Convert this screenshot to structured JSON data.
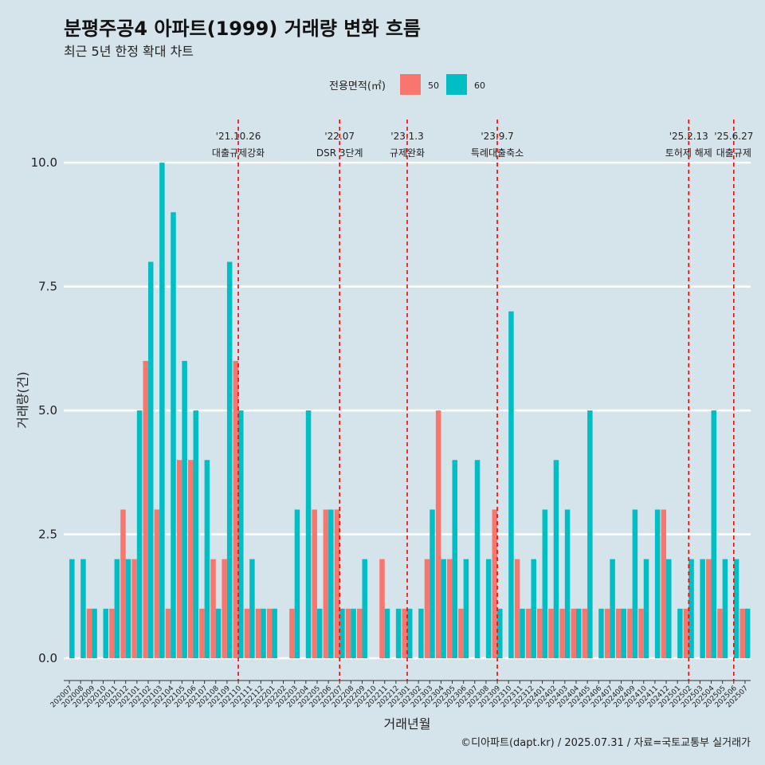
{
  "title": "분평주공4 아파트(1999) 거래량 변화 흐름",
  "subtitle": "최근 5년 한정 확대 차트",
  "caption": "©디아파트(dapt.kr) / 2025.07.31 / 자료=국토교통부 실거래가",
  "colors": {
    "background": "#d5e3ea",
    "s50": "#f8766d",
    "s60": "#00bfc4",
    "event_line": "#ff0000",
    "grid": "#ffffff"
  },
  "chart_data": {
    "type": "bar",
    "xlabel": "거래년월",
    "ylabel": "거래량(건)",
    "ylim": [
      -0.45,
      11.0
    ],
    "yticks": [
      0,
      2.5,
      5,
      7.5,
      10
    ],
    "ytick_labels": [
      "0.0",
      "2.5",
      "5.0",
      "7.5",
      "10.0"
    ],
    "legend": {
      "title": "전용면적(㎡)",
      "position": "top",
      "entries": [
        "50",
        "60"
      ]
    },
    "categories": [
      "202007",
      "202008",
      "202009",
      "202010",
      "202011",
      "202012",
      "202101",
      "202102",
      "202103",
      "202104",
      "202105",
      "202106",
      "202107",
      "202108",
      "202109",
      "202110",
      "202111",
      "202112",
      "202201",
      "202202",
      "202203",
      "202204",
      "202205",
      "202206",
      "202207",
      "202208",
      "202209",
      "202210",
      "202211",
      "202212",
      "202301",
      "202302",
      "202303",
      "202304",
      "202305",
      "202306",
      "202307",
      "202308",
      "202309",
      "202310",
      "202311",
      "202312",
      "202401",
      "202402",
      "202403",
      "202404",
      "202405",
      "202406",
      "202407",
      "202408",
      "202409",
      "202410",
      "202411",
      "202412",
      "202501",
      "202502",
      "202503",
      "202504",
      "202505",
      "202506",
      "202507"
    ],
    "series": [
      {
        "name": "50",
        "values": [
          0,
          0,
          1,
          0,
          1,
          3,
          2,
          6,
          3,
          1,
          4,
          4,
          1,
          2,
          2,
          6,
          1,
          1,
          1,
          0,
          1,
          0,
          3,
          3,
          3,
          1,
          1,
          0,
          2,
          0,
          1,
          0,
          2,
          5,
          2,
          1,
          0,
          0,
          3,
          0,
          2,
          1,
          1,
          1,
          1,
          1,
          1,
          0,
          1,
          1,
          1,
          1,
          0,
          3,
          0,
          1,
          0,
          2,
          1,
          0,
          1
        ]
      },
      {
        "name": "60",
        "values": [
          2,
          2,
          1,
          1,
          2,
          2,
          5,
          8,
          10,
          9,
          6,
          5,
          4,
          1,
          8,
          5,
          2,
          1,
          1,
          0,
          3,
          5,
          1,
          3,
          1,
          1,
          2,
          0,
          1,
          1,
          1,
          1,
          3,
          2,
          4,
          2,
          4,
          2,
          1,
          7,
          1,
          2,
          3,
          4,
          3,
          1,
          5,
          1,
          2,
          1,
          3,
          2,
          3,
          2,
          1,
          2,
          2,
          5,
          2,
          2,
          1
        ]
      }
    ],
    "events": [
      {
        "date": "'21.10.26",
        "label": "대출규제강화",
        "position": "202110"
      },
      {
        "date": "'22.07",
        "label": "DSR 3단계",
        "position": "202207"
      },
      {
        "date": "'23.1.3",
        "label": "규제완화",
        "position": "202301"
      },
      {
        "date": "'23.9.7",
        "label": "특례대출축소",
        "position": "202309"
      },
      {
        "date": "'25.2.13",
        "label": "토허제 해제",
        "position": "202502"
      },
      {
        "date": "'25.6.27",
        "label": "대출규제",
        "position": "202506"
      }
    ]
  }
}
